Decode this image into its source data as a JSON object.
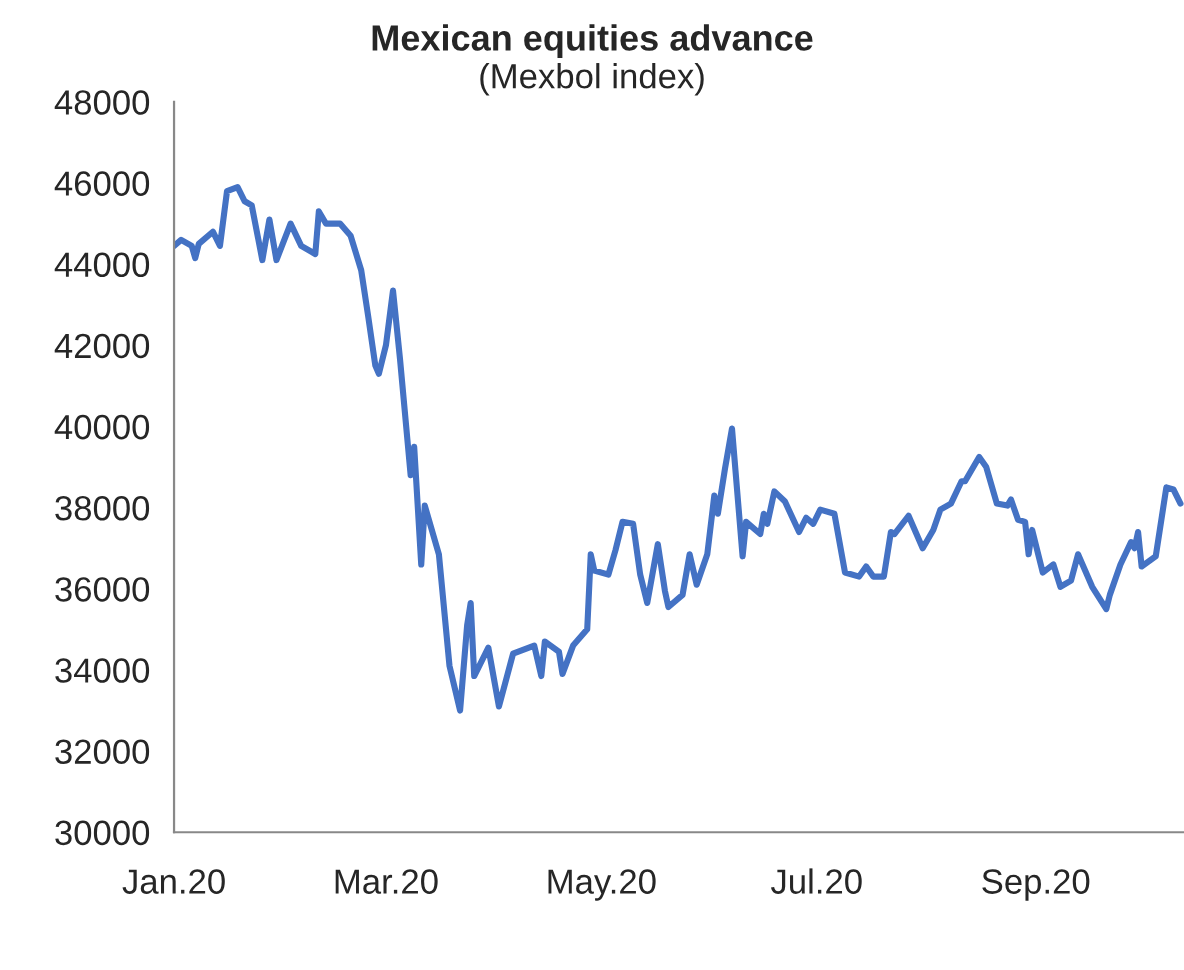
{
  "chart_data": {
    "type": "line",
    "title": "Mexican equities advance",
    "subtitle": "(Mexbol index)",
    "x": [
      "2020-01-01",
      "2020-01-03",
      "2020-01-06",
      "2020-01-07",
      "2020-01-08",
      "2020-01-12",
      "2020-01-14",
      "2020-01-16",
      "2020-01-19",
      "2020-01-21",
      "2020-01-23",
      "2020-01-26",
      "2020-01-28",
      "2020-01-30",
      "2020-02-03",
      "2020-02-06",
      "2020-02-10",
      "2020-02-11",
      "2020-02-13",
      "2020-02-17",
      "2020-02-20",
      "2020-02-23",
      "2020-02-25",
      "2020-02-27",
      "2020-02-28",
      "2020-03-01",
      "2020-03-03",
      "2020-03-05",
      "2020-03-08",
      "2020-03-09",
      "2020-03-11",
      "2020-03-12",
      "2020-03-16",
      "2020-03-19",
      "2020-03-22",
      "2020-03-24",
      "2020-03-25",
      "2020-03-26",
      "2020-03-30",
      "2020-04-02",
      "2020-04-06",
      "2020-04-12",
      "2020-04-14",
      "2020-04-15",
      "2020-04-19",
      "2020-04-20",
      "2020-04-23",
      "2020-04-27",
      "2020-04-28",
      "2020-04-29",
      "2020-05-03",
      "2020-05-05",
      "2020-05-07",
      "2020-05-10",
      "2020-05-12",
      "2020-05-14",
      "2020-05-17",
      "2020-05-19",
      "2020-05-20",
      "2020-05-24",
      "2020-05-26",
      "2020-05-28",
      "2020-05-31",
      "2020-06-02",
      "2020-06-03",
      "2020-06-05",
      "2020-06-07",
      "2020-06-10",
      "2020-06-11",
      "2020-06-15",
      "2020-06-16",
      "2020-06-17",
      "2020-06-19",
      "2020-06-22",
      "2020-06-26",
      "2020-06-28",
      "2020-06-30",
      "2020-07-02",
      "2020-07-06",
      "2020-07-09",
      "2020-07-13",
      "2020-07-15",
      "2020-07-17",
      "2020-07-20",
      "2020-07-22",
      "2020-07-23",
      "2020-07-27",
      "2020-07-31",
      "2020-08-03",
      "2020-08-05",
      "2020-08-08",
      "2020-08-11",
      "2020-08-12",
      "2020-08-16",
      "2020-08-18",
      "2020-08-21",
      "2020-08-24",
      "2020-08-25",
      "2020-08-27",
      "2020-08-29",
      "2020-08-30",
      "2020-08-31",
      "2020-09-03",
      "2020-09-06",
      "2020-09-08",
      "2020-09-11",
      "2020-09-13",
      "2020-09-17",
      "2020-09-21",
      "2020-09-22",
      "2020-09-25",
      "2020-09-28",
      "2020-09-29",
      "2020-09-30",
      "2020-10-01",
      "2020-10-05",
      "2020-10-08",
      "2020-10-10",
      "2020-10-12"
    ],
    "series": [
      {
        "color": "#4472c4",
        "values": [
          44450,
          44600,
          44450,
          44150,
          44500,
          44800,
          44450,
          45800,
          45900,
          45550,
          45450,
          44100,
          45100,
          44100,
          45000,
          44450,
          44250,
          45300,
          45000,
          45000,
          44700,
          43850,
          42700,
          41500,
          41300,
          42000,
          43350,
          41650,
          38800,
          39500,
          36600,
          38050,
          36850,
          34100,
          33000,
          35100,
          35650,
          33850,
          34550,
          33100,
          34400,
          34600,
          33850,
          34700,
          34450,
          33900,
          34600,
          35000,
          36850,
          36450,
          36350,
          36950,
          37650,
          37600,
          36350,
          35650,
          37100,
          35950,
          35550,
          35850,
          36850,
          36100,
          36850,
          38300,
          37850,
          38950,
          39950,
          36800,
          37650,
          37350,
          37850,
          37600,
          38400,
          38150,
          37400,
          37750,
          37600,
          37950,
          37850,
          36400,
          36300,
          36550,
          36300,
          36300,
          37400,
          37350,
          37800,
          37000,
          37450,
          37950,
          38100,
          38650,
          38650,
          39250,
          39000,
          38100,
          38050,
          38200,
          37700,
          37650,
          36850,
          37450,
          36400,
          36600,
          36050,
          36200,
          36850,
          36050,
          35500,
          35850,
          36600,
          37150,
          37000,
          37400,
          36550,
          36800,
          38500,
          38450,
          38100
        ]
      }
    ],
    "xlim": [
      "2020-01-01",
      "2020-10-13"
    ],
    "xticks": [
      {
        "value": "2020-01-01",
        "label": "Jan.20"
      },
      {
        "value": "2020-03-01",
        "label": "Mar.20"
      },
      {
        "value": "2020-05-01",
        "label": "May.20"
      },
      {
        "value": "2020-07-01",
        "label": "Jul.20"
      },
      {
        "value": "2020-09-01",
        "label": "Sep.20"
      }
    ],
    "ylim": [
      30000,
      48000
    ],
    "yticks": [
      30000,
      32000,
      34000,
      36000,
      38000,
      40000,
      42000,
      44000,
      46000,
      48000
    ],
    "grid": false,
    "legend": false,
    "marker": "none",
    "line_style": "solid"
  }
}
